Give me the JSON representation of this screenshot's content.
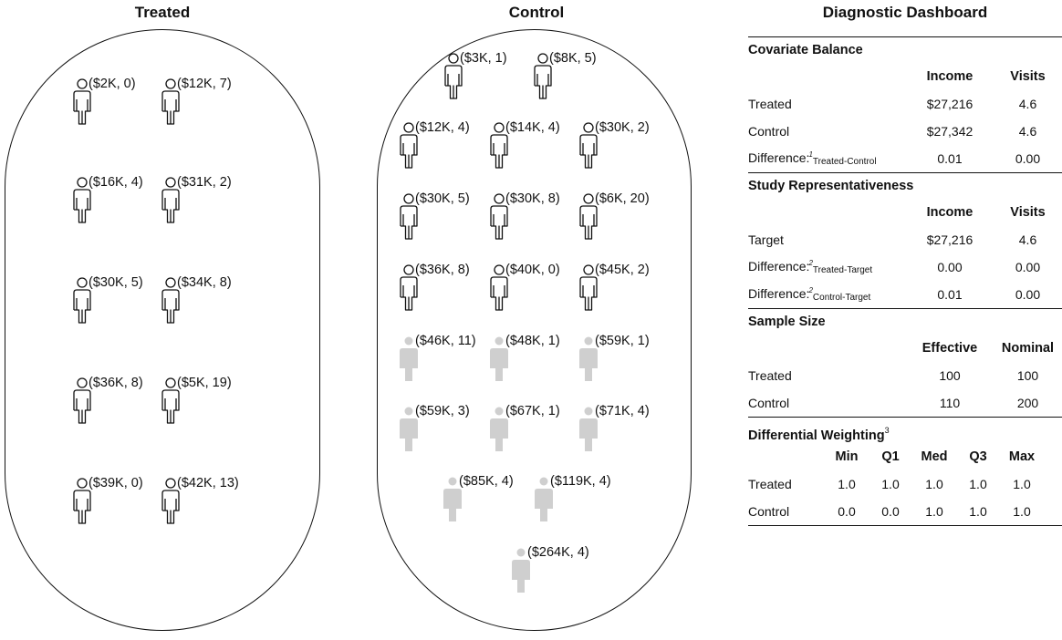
{
  "titles": {
    "treated": "Treated",
    "control": "Control",
    "dashboard": "Diagnostic Dashboard"
  },
  "treated_people": [
    {
      "label": "($2K, 0)",
      "filled": false
    },
    {
      "label": "($12K, 7)",
      "filled": false
    },
    {
      "label": "($16K, 4)",
      "filled": false
    },
    {
      "label": "($31K, 2)",
      "filled": false
    },
    {
      "label": "($30K, 5)",
      "filled": false
    },
    {
      "label": "($34K, 8)",
      "filled": false
    },
    {
      "label": "($36K, 8)",
      "filled": false
    },
    {
      "label": "($5K, 19)",
      "filled": false
    },
    {
      "label": "($39K, 0)",
      "filled": false
    },
    {
      "label": "($42K, 13)",
      "filled": false
    }
  ],
  "control_people": [
    {
      "label": "($3K, 1)",
      "filled": false
    },
    {
      "label": "($8K, 5)",
      "filled": false
    },
    {
      "label": "($12K, 4)",
      "filled": false
    },
    {
      "label": "($14K, 4)",
      "filled": false
    },
    {
      "label": "($30K, 2)",
      "filled": false
    },
    {
      "label": "($30K, 5)",
      "filled": false
    },
    {
      "label": "($30K, 8)",
      "filled": false
    },
    {
      "label": "($6K, 20)",
      "filled": false
    },
    {
      "label": "($36K, 8)",
      "filled": false
    },
    {
      "label": "($40K, 0)",
      "filled": false
    },
    {
      "label": "($45K, 2)",
      "filled": false
    },
    {
      "label": "($46K, 11)",
      "filled": true
    },
    {
      "label": "($48K, 1)",
      "filled": true
    },
    {
      "label": "($59K, 1)",
      "filled": true
    },
    {
      "label": "($59K, 3)",
      "filled": true
    },
    {
      "label": "($67K, 1)",
      "filled": true
    },
    {
      "label": "($71K, 4)",
      "filled": true
    },
    {
      "label": "($85K, 4)",
      "filled": true
    },
    {
      "label": "($119K, 4)",
      "filled": true
    },
    {
      "label": "($264K, 4)",
      "filled": true
    }
  ],
  "colors": {
    "outline": "#111111",
    "excluded_fill": "#cfcfcf"
  },
  "dashboard": {
    "covariate_balance": {
      "title": "Covariate Balance",
      "col1": "Income",
      "col2": "Visits",
      "rows": [
        {
          "label": "Treated",
          "sub": "",
          "fn": "",
          "v1": "$27,216",
          "v2": "4.6"
        },
        {
          "label": "Control",
          "sub": "",
          "fn": "",
          "v1": "$27,342",
          "v2": "4.6"
        },
        {
          "label": "Difference:",
          "fn": "1",
          "sub": "Treated-Control",
          "v1": "0.01",
          "v2": "0.00"
        }
      ]
    },
    "representativeness": {
      "title": "Study Representativeness",
      "col1": "Income",
      "col2": "Visits",
      "rows": [
        {
          "label": "Target",
          "sub": "",
          "fn": "",
          "v1": "$27,216",
          "v2": "4.6"
        },
        {
          "label": "Difference:",
          "fn": "2",
          "sub": "Treated-Target",
          "v1": "0.00",
          "v2": "0.00"
        },
        {
          "label": "Difference:",
          "fn": "2",
          "sub": "Control-Target",
          "v1": "0.01",
          "v2": "0.00"
        }
      ]
    },
    "sample_size": {
      "title": "Sample Size",
      "col1": "Effective",
      "col2": "Nominal",
      "rows": [
        {
          "label": "Treated",
          "v1": "100",
          "v2": "100"
        },
        {
          "label": "Control",
          "v1": "110",
          "v2": "200"
        }
      ]
    },
    "weighting": {
      "title": "Differential Weighting",
      "title_fn": "3",
      "cols": [
        "Min",
        "Q1",
        "Med",
        "Q3",
        "Max"
      ],
      "rows": [
        {
          "label": "Treated",
          "values": [
            "1.0",
            "1.0",
            "1.0",
            "1.0",
            "1.0"
          ]
        },
        {
          "label": "Control",
          "values": [
            "0.0",
            "0.0",
            "1.0",
            "1.0",
            "1.0"
          ]
        }
      ]
    }
  }
}
